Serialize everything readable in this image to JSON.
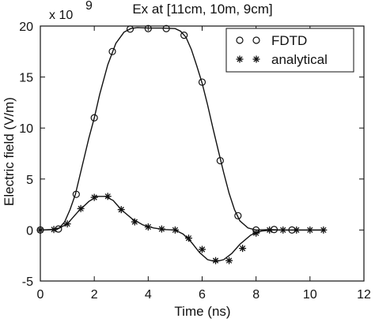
{
  "chart_data": {
    "type": "line",
    "title": "Ex at [11cm, 10m, 9cm]",
    "xlabel": "Time (ns)",
    "ylabel": "Electric field (V/m)",
    "y_multiplier_label": "x 10",
    "y_multiplier_exponent": "9",
    "xlim": [
      0,
      12
    ],
    "ylim": [
      -5,
      20
    ],
    "xticks": [
      0,
      2,
      4,
      6,
      8,
      10,
      12
    ],
    "yticks": [
      -5,
      0,
      5,
      10,
      15,
      20
    ],
    "grid": false,
    "legend_position": "top-right",
    "series": [
      {
        "name": "FDTD",
        "marker": "circle",
        "curve_x": [
          0.0,
          0.4,
          0.7,
          0.9,
          1.1,
          1.3,
          1.6,
          1.8,
          2.0,
          2.2,
          2.5,
          2.8,
          3.1,
          3.35,
          3.6,
          4.0,
          4.5,
          5.0,
          5.2,
          5.4,
          5.6,
          5.8,
          6.0,
          6.2,
          6.4,
          6.6,
          6.8,
          7.0,
          7.2,
          7.4,
          7.7,
          8.0,
          8.5,
          9.0,
          10.5
        ],
        "curve_y": [
          0.0,
          0.05,
          0.2,
          0.8,
          2.0,
          3.5,
          6.8,
          9.0,
          11.0,
          13.3,
          16.2,
          18.3,
          19.4,
          19.75,
          19.85,
          19.8,
          19.8,
          19.75,
          19.5,
          18.9,
          17.7,
          16.1,
          14.4,
          12.3,
          10.0,
          7.8,
          5.6,
          3.6,
          2.0,
          0.9,
          0.2,
          0.0,
          0.05,
          0.0,
          0.0
        ],
        "marker_x": [
          0.0,
          0.67,
          1.33,
          2.0,
          2.67,
          3.33,
          4.0,
          4.67,
          5.33,
          6.0,
          6.67,
          7.33,
          8.0,
          8.67,
          9.33
        ],
        "marker_y": [
          0.0,
          0.1,
          3.5,
          11.0,
          17.5,
          19.7,
          19.75,
          19.75,
          19.1,
          14.5,
          6.8,
          1.4,
          0.0,
          0.05,
          0.0
        ]
      },
      {
        "name": "analytical",
        "marker": "star",
        "curve_x": [
          0.0,
          0.6,
          1.0,
          1.4,
          1.8,
          2.1,
          2.4,
          2.7,
          3.0,
          3.4,
          3.8,
          4.2,
          4.6,
          5.0,
          5.3,
          5.6,
          5.9,
          6.2,
          6.5,
          6.8,
          7.1,
          7.4,
          7.8,
          8.2,
          8.6,
          9.0,
          10.5
        ],
        "curve_y": [
          0.0,
          0.05,
          0.6,
          1.8,
          2.8,
          3.3,
          3.3,
          2.9,
          2.0,
          1.1,
          0.5,
          0.2,
          0.05,
          0.0,
          -0.4,
          -1.2,
          -2.2,
          -2.9,
          -3.1,
          -2.9,
          -2.3,
          -1.4,
          -0.5,
          -0.1,
          0.0,
          0.0,
          0.0
        ],
        "marker_x": [
          0.0,
          0.5,
          1.0,
          1.5,
          2.0,
          2.5,
          3.0,
          3.5,
          4.0,
          4.5,
          5.0,
          5.5,
          6.0,
          6.5,
          7.0,
          7.5,
          8.0,
          8.5,
          9.0,
          9.5,
          10.0,
          10.5
        ],
        "marker_y": [
          0.0,
          0.05,
          0.6,
          2.1,
          3.2,
          3.3,
          2.0,
          0.8,
          0.3,
          0.1,
          0.0,
          -0.8,
          -1.9,
          -3.0,
          -3.0,
          -1.8,
          -0.3,
          0.0,
          0.0,
          0.0,
          0.0,
          0.0
        ]
      }
    ]
  }
}
